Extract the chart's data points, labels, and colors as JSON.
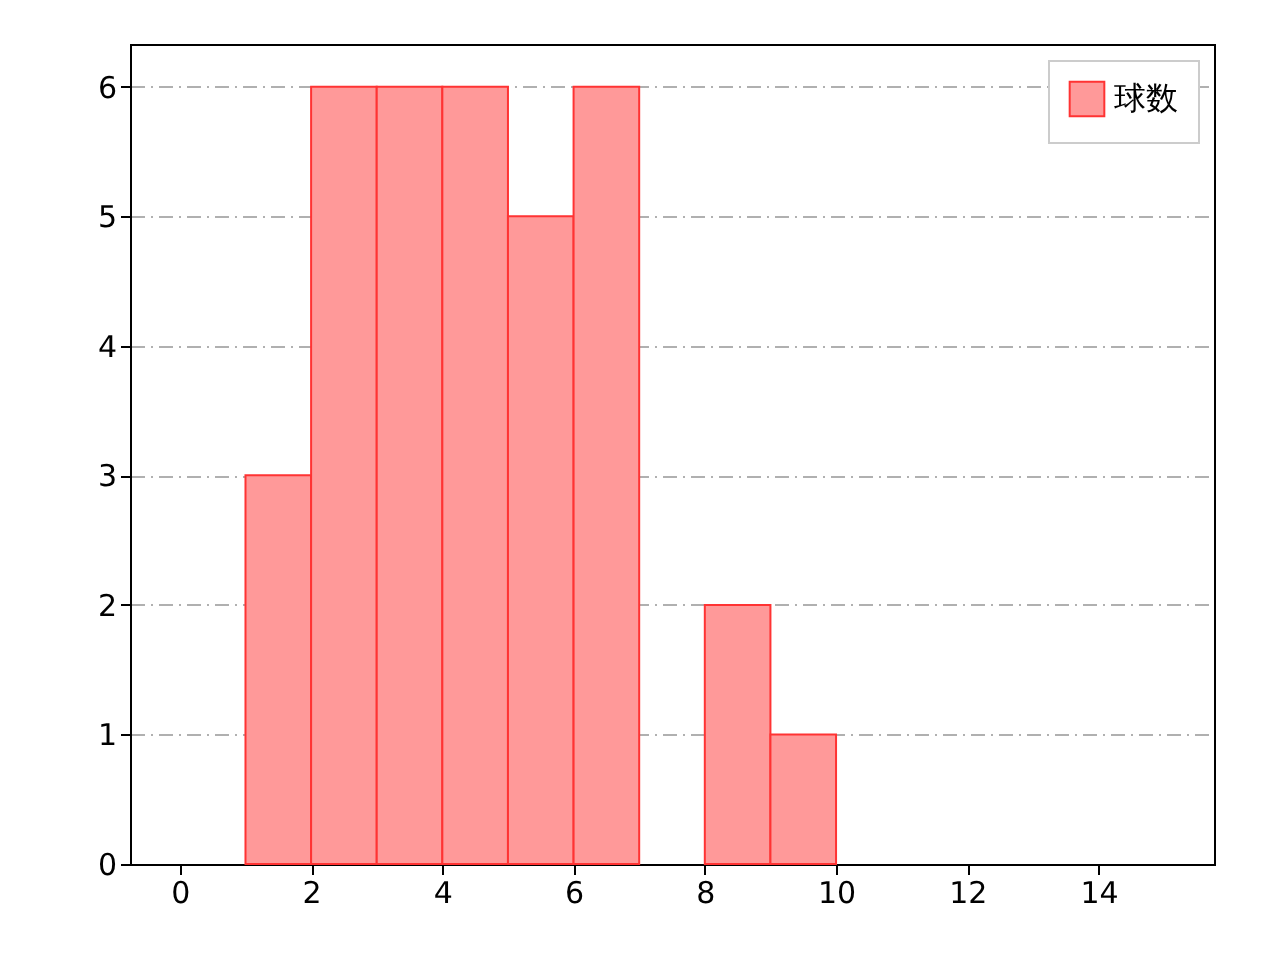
{
  "chart_data": {
    "type": "histogram",
    "bins": [
      1,
      2,
      3,
      4,
      5,
      6,
      7,
      8,
      9,
      10
    ],
    "series": [
      {
        "name": "球数",
        "color": "#ff9999",
        "values": [
          3,
          6,
          6,
          6,
          5,
          6,
          0,
          2,
          1
        ]
      }
    ],
    "xlim": [
      -0.76,
      15.76
    ],
    "xticks": [
      0,
      2,
      4,
      6,
      8,
      10,
      12,
      14
    ],
    "ylim": [
      0,
      6.33
    ],
    "yticks": [
      0,
      1,
      2,
      3,
      4,
      5,
      6
    ],
    "grid": "y",
    "legend": "top right"
  }
}
